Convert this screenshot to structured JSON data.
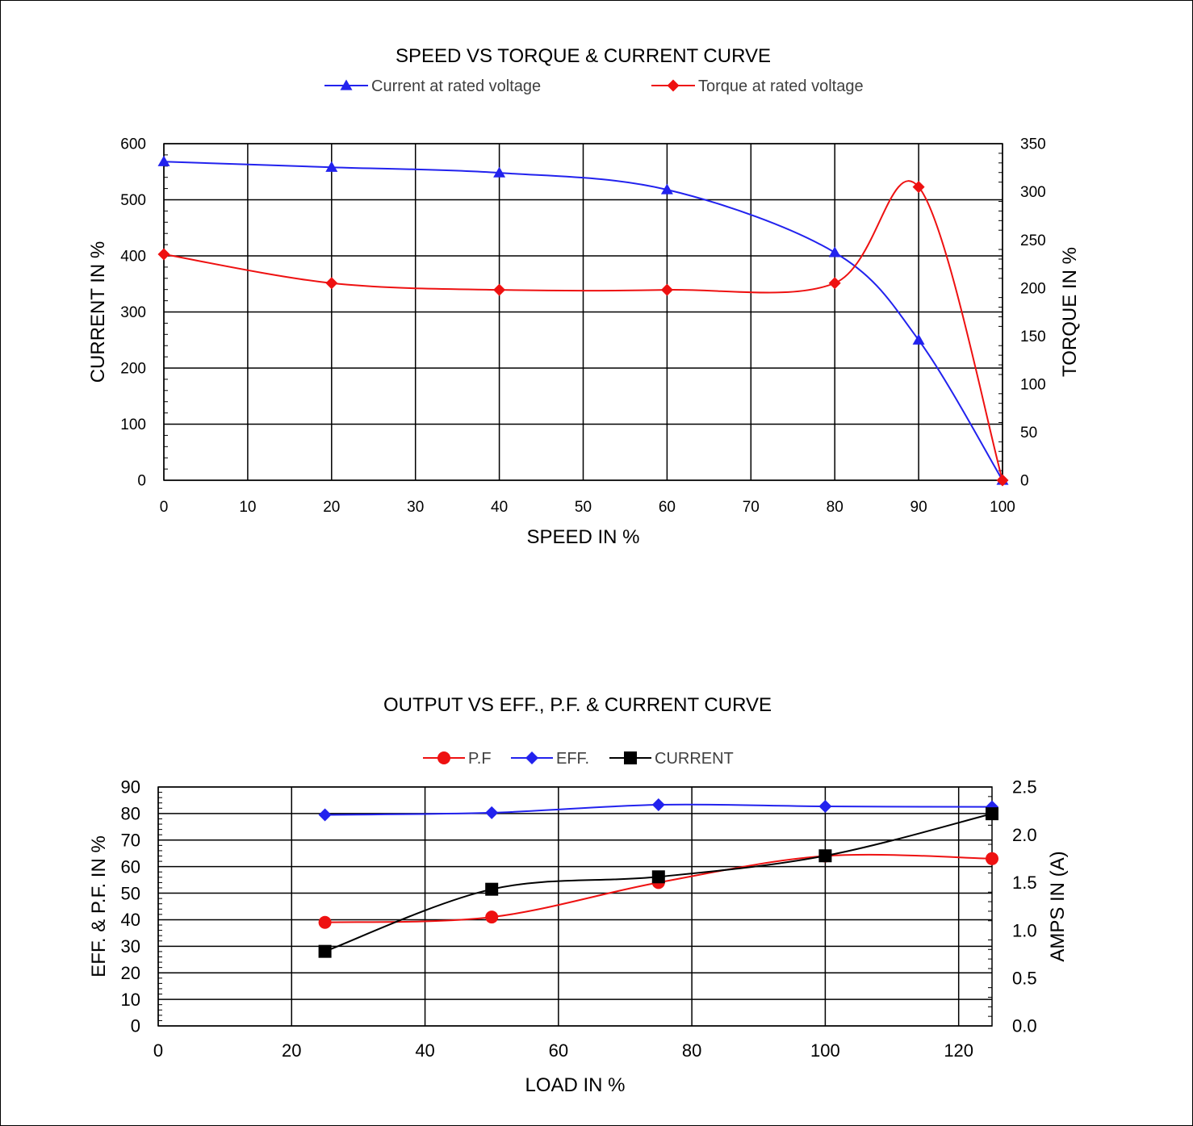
{
  "chart_data": [
    {
      "type": "line",
      "title": "SPEED VS TORQUE & CURRENT CURVE",
      "xlabel": "SPEED IN %",
      "ylabel": "CURRENT IN %",
      "y2label": "TORQUE IN %",
      "xlim": [
        0,
        100
      ],
      "ylim": [
        0,
        600
      ],
      "y2lim": [
        0,
        350
      ],
      "x_ticks": [
        "0",
        "10",
        "20",
        "30",
        "40",
        "50",
        "60",
        "70",
        "80",
        "90",
        "100"
      ],
      "y_ticks": [
        "0",
        "100",
        "200",
        "300",
        "400",
        "500",
        "600"
      ],
      "y2_ticks": [
        "0",
        "50",
        "100",
        "150",
        "200",
        "250",
        "300",
        "350"
      ],
      "grid": true,
      "legend_position": "top",
      "series": [
        {
          "name": "Current at rated voltage",
          "axis": "left",
          "color": "#2222ee",
          "marker": "triangle",
          "x": [
            0,
            20,
            40,
            60,
            80,
            90,
            100
          ],
          "y": [
            568,
            558,
            548,
            518,
            406,
            250,
            0
          ]
        },
        {
          "name": "Torque at rated voltage",
          "axis": "right",
          "color": "#ee1111",
          "marker": "diamond",
          "x": [
            0,
            20,
            40,
            60,
            80,
            90,
            100
          ],
          "y": [
            235,
            205,
            198,
            198,
            205,
            305,
            0
          ]
        }
      ]
    },
    {
      "type": "line",
      "title": "OUTPUT VS EFF., P.F. & CURRENT CURVE",
      "xlabel": "LOAD IN %",
      "ylabel": "EFF. & P.F. IN %",
      "y2label": "AMPS IN (A)",
      "xlim": [
        0,
        125
      ],
      "ylim": [
        0,
        90
      ],
      "y2lim": [
        0,
        2.5
      ],
      "x_ticks": [
        "0",
        "20",
        "40",
        "60",
        "80",
        "100",
        "120"
      ],
      "y_ticks": [
        "0",
        "10",
        "20",
        "30",
        "40",
        "50",
        "60",
        "70",
        "80",
        "90"
      ],
      "y2_ticks": [
        "0.0",
        "0.5",
        "1.0",
        "1.5",
        "2.0",
        "2.5"
      ],
      "grid": true,
      "legend_position": "top",
      "series": [
        {
          "name": "P.F",
          "axis": "left",
          "color": "#ee1111",
          "marker": "circle",
          "x": [
            25,
            50,
            75,
            100,
            125
          ],
          "y": [
            39,
            41,
            54,
            64,
            63
          ]
        },
        {
          "name": "EFF.",
          "axis": "left",
          "color": "#2222ee",
          "marker": "diamond",
          "x": [
            25,
            50,
            75,
            100,
            125
          ],
          "y": [
            79.5,
            80.3,
            83.3,
            82.7,
            82.5
          ]
        },
        {
          "name": "CURRENT",
          "axis": "right",
          "color": "#000000",
          "marker": "square",
          "x": [
            25,
            50,
            75,
            100,
            125
          ],
          "y": [
            0.78,
            1.43,
            1.56,
            1.78,
            2.22
          ]
        }
      ]
    }
  ]
}
